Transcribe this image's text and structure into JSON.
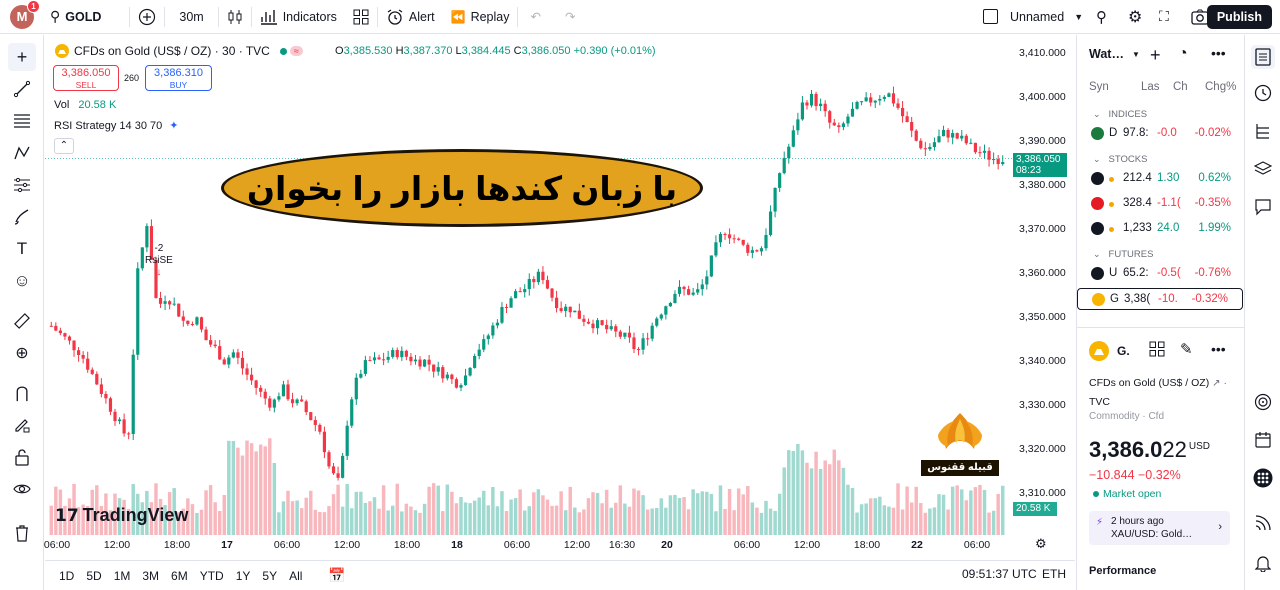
{
  "topbar": {
    "avatar_letter": "M",
    "notification_count": "1",
    "symbol": "GOLD",
    "interval": "30m",
    "indicators_label": "Indicators",
    "alert_label": "Alert",
    "replay_label": "Replay",
    "layout_name": "Unnamed",
    "publish_label": "Publish"
  },
  "legend": {
    "title": "CFDs on Gold (US$ / OZ) · 30 · TVC",
    "open_label": "O",
    "open": "3,385.530",
    "high_label": "H",
    "high": "3,387.370",
    "low_label": "L",
    "low": "3,384.445",
    "close_label": "C",
    "close": "3,386.050",
    "change": "+0.390 (+0.01%)",
    "sell_price": "3,386.050",
    "sell_label": "SELL",
    "spread": "260",
    "buy_price": "3,386.310",
    "buy_label": "BUY",
    "vol_label": "Vol",
    "vol_value": "20.58 K",
    "rsi_label": "RSI Strategy 14 30 70",
    "collapse_glyph": "⌃"
  },
  "banner_text": "با زبان کندها بازار را بخوان",
  "signal": {
    "line1": "-2",
    "line2": "RsiSE"
  },
  "watermark": "TradingView",
  "phoenix_label": "قبیله ققنوس",
  "current_price": {
    "price": "3,386.050",
    "countdown": "08:23"
  },
  "volume_tag": "20.58 K",
  "chart_data": {
    "type": "candlestick",
    "price_axis_ticks": [
      "3,410.000",
      "3,400.000",
      "3,390.000",
      "3,380.000",
      "3,370.000",
      "3,360.000",
      "3,350.000",
      "3,340.000",
      "3,330.000",
      "3,320.000",
      "3,310.000"
    ],
    "time_axis_ticks": [
      {
        "label": "06:00",
        "bold": false
      },
      {
        "label": "12:00",
        "bold": false
      },
      {
        "label": "18:00",
        "bold": false
      },
      {
        "label": "17",
        "bold": true
      },
      {
        "label": "06:00",
        "bold": false
      },
      {
        "label": "12:00",
        "bold": false
      },
      {
        "label": "18:00",
        "bold": false
      },
      {
        "label": "18",
        "bold": true
      },
      {
        "label": "06:00",
        "bold": false
      },
      {
        "label": "12:00",
        "bold": false
      },
      {
        "label": "16:30",
        "bold": false
      },
      {
        "label": "20",
        "bold": true
      },
      {
        "label": "06:00",
        "bold": false
      },
      {
        "label": "12:00",
        "bold": false
      },
      {
        "label": "18:00",
        "bold": false
      },
      {
        "label": "22",
        "bold": true
      },
      {
        "label": "06:00",
        "bold": false
      }
    ],
    "ylim": [
      3305,
      3412
    ],
    "close_path": [
      3348,
      3346,
      3344,
      3342,
      3338,
      3334,
      3330,
      3326,
      3322,
      3360,
      3372,
      3352,
      3355,
      3352,
      3348,
      3350,
      3345,
      3343,
      3340,
      3342,
      3338,
      3335,
      3332,
      3330,
      3334,
      3331,
      3330,
      3327,
      3324,
      3315,
      3312,
      3330,
      3337,
      3340,
      3340,
      3341,
      3342,
      3341,
      3340,
      3340,
      3338,
      3337,
      3335,
      3336,
      3342,
      3344,
      3348,
      3352,
      3355,
      3356,
      3358,
      3360,
      3355,
      3352,
      3352,
      3350,
      3349,
      3348,
      3347,
      3346,
      3345,
      3342,
      3346,
      3350,
      3353,
      3356,
      3356,
      3355,
      3358,
      3365,
      3370,
      3368,
      3366,
      3365,
      3366,
      3375,
      3385,
      3390,
      3398,
      3400,
      3398,
      3394,
      3392,
      3396,
      3398,
      3399,
      3400,
      3401,
      3398,
      3394,
      3390,
      3388,
      3390,
      3392,
      3391,
      3390,
      3388,
      3387,
      3386,
      3386
    ]
  },
  "bottombar": {
    "ranges": [
      "1D",
      "5D",
      "1M",
      "3M",
      "6M",
      "YTD",
      "1Y",
      "5Y",
      "All"
    ],
    "clock": "09:51:37 UTC",
    "currency": "ETH"
  },
  "watchlist": {
    "title": "Wat…",
    "columns": [
      "Syn",
      "Las",
      "Ch",
      "Chg%"
    ],
    "sections": [
      {
        "label": "INDICES",
        "rows": [
          {
            "sym": "D",
            "last": "97.8:",
            "chg": "-0.0",
            "pct": "-0.02%",
            "dir": "neg",
            "icon_color": "#1b7a3e"
          }
        ]
      },
      {
        "label": "STOCKS",
        "rows": [
          {
            "sym": "",
            "last": "212.4",
            "chg": "1.30",
            "pct": "0.62%",
            "dir": "pos",
            "icon_color": "#131722"
          },
          {
            "sym": "",
            "last": "328.4",
            "chg": "-1.1(",
            "pct": "-0.35%",
            "dir": "neg",
            "icon_color": "#e31b23"
          },
          {
            "sym": "",
            "last": "1,233",
            "chg": "24.0",
            "pct": "1.99%",
            "dir": "pos",
            "icon_color": "#131722"
          }
        ]
      },
      {
        "label": "FUTURES",
        "rows": [
          {
            "sym": "U",
            "last": "65.2:",
            "chg": "-0.5(",
            "pct": "-0.76%",
            "dir": "neg",
            "icon_color": "#131722"
          },
          {
            "sym": "G",
            "last": "3,38(",
            "chg": "-10.",
            "pct": "-0.32%",
            "dir": "neg",
            "icon_color": "#f7b500",
            "selected": true
          }
        ]
      }
    ]
  },
  "details": {
    "short": "G.",
    "name": "CFDs on Gold (US$ / OZ)",
    "exchange_sep": "·",
    "exchange": "TVC",
    "category": "Commodity · Cfd",
    "price_main": "3,386.0",
    "price_tail": "22",
    "currency": "USD",
    "change": "−10.844  −0.32%",
    "status": "Market open",
    "news_time": "2 hours ago",
    "news_title": "XAU/USD: Gold…",
    "performance": "Performance"
  },
  "colors": {
    "up": "#089981",
    "down": "#f23645",
    "accent": "#2962ff"
  }
}
